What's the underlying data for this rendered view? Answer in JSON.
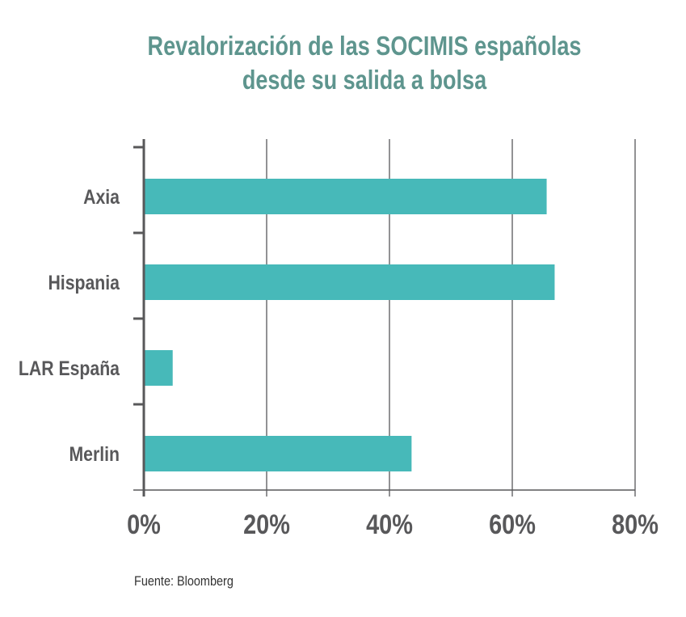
{
  "chart_data": {
    "type": "bar",
    "orientation": "horizontal",
    "title": [
      "Revalorización de las SOCIMIS españolas",
      "desde su salida a bolsa"
    ],
    "categories": [
      "Axia",
      "Hispania",
      "LAR España",
      "Merlin"
    ],
    "values": [
      65.6,
      66.9,
      4.7,
      43.6
    ],
    "xlabel": "",
    "ylabel": "",
    "xlim": [
      0,
      80
    ],
    "xticks": [
      0,
      20,
      40,
      60,
      80
    ],
    "xtick_labels": [
      "0%",
      "20%",
      "40%",
      "60%",
      "80%"
    ],
    "grid": "vertical",
    "colors": {
      "bar": "#47b9b9",
      "title": "#5e958e",
      "axis": "#58585a"
    },
    "source": "Fuente: Bloomberg"
  }
}
